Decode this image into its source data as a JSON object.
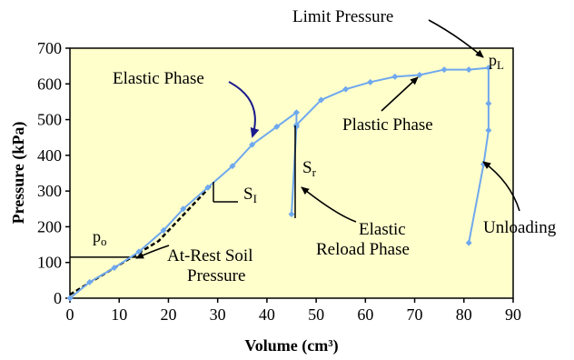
{
  "chart_data": {
    "type": "line",
    "xlabel": "Volume (cm³)",
    "ylabel": "Pressure (kPa)",
    "xlim": [
      0,
      90
    ],
    "ylim": [
      0,
      700
    ],
    "xticks": [
      0,
      10,
      20,
      30,
      40,
      50,
      60,
      70,
      80,
      90
    ],
    "yticks": [
      0,
      100,
      200,
      300,
      400,
      500,
      600,
      700
    ],
    "grid": false,
    "plot_background": "#FFFFCC",
    "series": [
      {
        "color": "#6FA8EE",
        "marker": "diamond",
        "points": [
          [
            0,
            0
          ],
          [
            4,
            45
          ],
          [
            9,
            85
          ],
          [
            14,
            130
          ],
          [
            19,
            190
          ],
          [
            23,
            250
          ],
          [
            28,
            310
          ],
          [
            33,
            370
          ],
          [
            37,
            430
          ],
          [
            42,
            480
          ],
          [
            46,
            520
          ],
          [
            46,
            480
          ],
          [
            45,
            235
          ],
          [
            46,
            485
          ],
          [
            51,
            555
          ],
          [
            56,
            585
          ],
          [
            61,
            605
          ],
          [
            66,
            620
          ],
          [
            71,
            625
          ],
          [
            76,
            640
          ],
          [
            81,
            640
          ],
          [
            85,
            645
          ],
          [
            85,
            545
          ],
          [
            85,
            470
          ],
          [
            84,
            375
          ],
          [
            81,
            155
          ]
        ]
      }
    ],
    "fit_line": {
      "color": "#000000",
      "style": "dashed",
      "points": [
        [
          0,
          10
        ],
        [
          18,
          160
        ],
        [
          29,
          320
        ]
      ]
    },
    "reference_lines": [
      {
        "label": "p_o",
        "y": 115,
        "x_from": 0,
        "x_to": 14
      }
    ],
    "annotations": {
      "limit_pressure": "Limit Pressure",
      "p_l_main": "p",
      "p_l_sub": "L",
      "elastic_phase": "Elastic Phase",
      "plastic_phase": "Plastic Phase",
      "s_i_main": "S",
      "s_i_sub": "I",
      "s_r_main": "S",
      "s_r_sub": "r",
      "elastic_reload_1": "Elastic",
      "elastic_reload_2": "Reload Phase",
      "unloading": "Unloading",
      "p_o_main": "p",
      "p_o_sub": "o",
      "at_rest_1": "At-Rest Soil",
      "at_rest_2": "Pressure"
    }
  }
}
